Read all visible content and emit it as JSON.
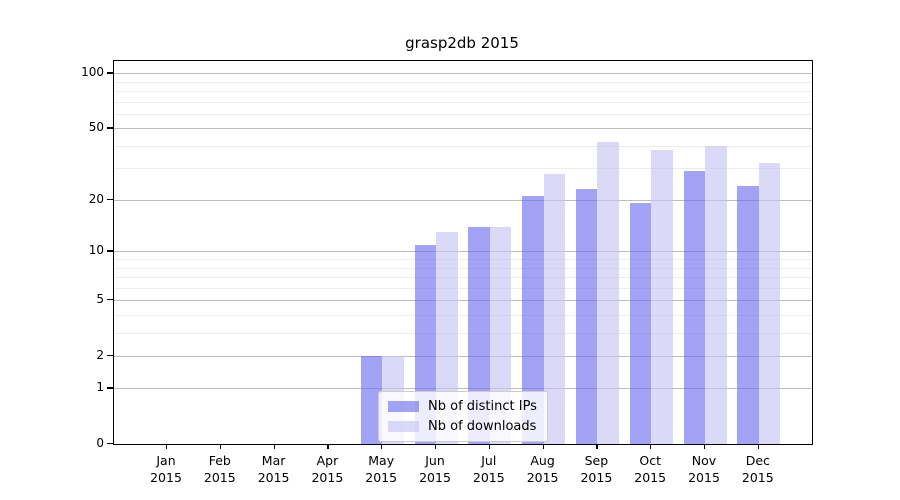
{
  "title": "grasp2db 2015",
  "chart_data": {
    "type": "bar",
    "title": "grasp2db 2015",
    "categories": [
      "Jan",
      "Feb",
      "Mar",
      "Apr",
      "May",
      "Jun",
      "Jul",
      "Aug",
      "Sep",
      "Oct",
      "Nov",
      "Dec"
    ],
    "x_year_label": "2015",
    "series": [
      {
        "name": "Nb of distinct IPs",
        "values": [
          0,
          0,
          0,
          0,
          2,
          11,
          14,
          21,
          23,
          19,
          29,
          24
        ],
        "color": "rgba(106,106,240,0.62)"
      },
      {
        "name": "Nb of downloads",
        "values": [
          0,
          0,
          0,
          0,
          2,
          13,
          14,
          28,
          42,
          38,
          40,
          32
        ],
        "color": "rgba(196,196,243,0.62)"
      }
    ],
    "xlabel": "",
    "ylabel": "",
    "yscale": "log1p",
    "ylim": [
      0,
      117
    ],
    "yticks": [
      0,
      1,
      2,
      5,
      10,
      20,
      50,
      100
    ],
    "minor_yticks": [
      3,
      4,
      6,
      7,
      8,
      9,
      30,
      40,
      60,
      70,
      80,
      90
    ],
    "grid": "horizontal",
    "legend_position": "bottom-center",
    "colors": {
      "major_grid": "#bdbdbd",
      "minor_grid": "#ececec",
      "axis": "#000000",
      "legend_border": "#cccccc"
    }
  }
}
